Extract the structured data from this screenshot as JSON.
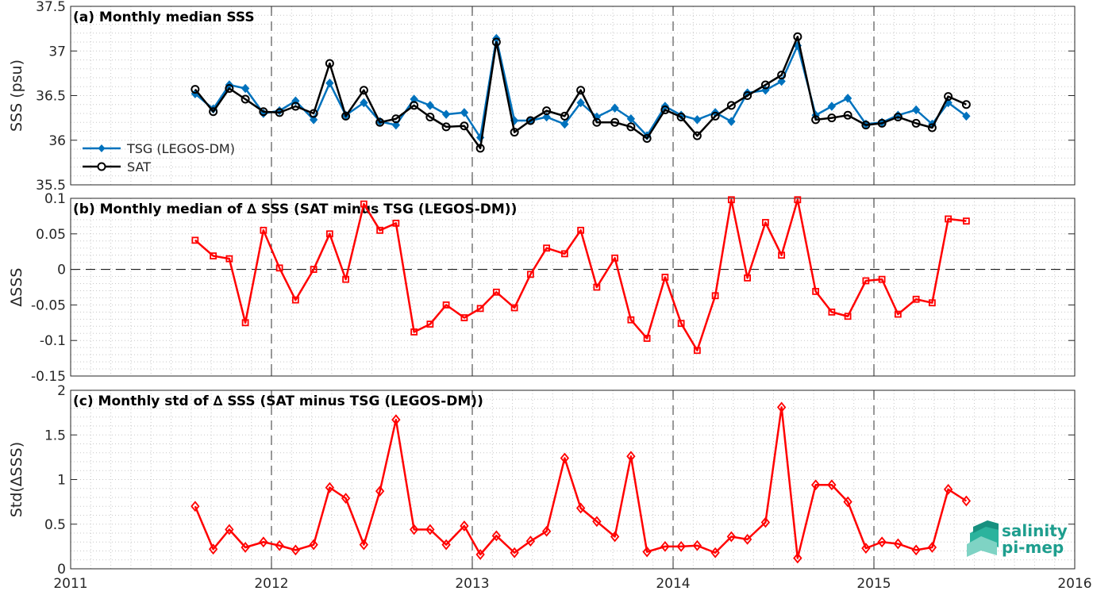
{
  "chart_data": [
    {
      "type": "line",
      "title": "(a) Monthly median SSS",
      "xlabel": "",
      "ylabel": "SSS (psu)",
      "xlim": [
        2011,
        2016
      ],
      "ylim": [
        35.5,
        37.5
      ],
      "xticks": [
        "2011",
        "2012",
        "2013",
        "2014",
        "2015",
        "2016"
      ],
      "yticks": [
        "35.5",
        "36",
        "36.5",
        "37",
        "37.5"
      ],
      "grid": "minor dotted, yearly dashed verticals",
      "legend_position": "bottom-left",
      "x": [
        2011.62,
        2011.71,
        2011.79,
        2011.87,
        2011.96,
        2012.04,
        2012.12,
        2012.21,
        2012.29,
        2012.37,
        2012.46,
        2012.54,
        2012.62,
        2012.71,
        2012.79,
        2012.87,
        2012.96,
        2013.04,
        2013.12,
        2013.21,
        2013.29,
        2013.37,
        2013.46,
        2013.54,
        2013.62,
        2013.71,
        2013.79,
        2013.87,
        2013.96,
        2014.04,
        2014.12,
        2014.21,
        2014.29,
        2014.37,
        2014.46,
        2014.54,
        2014.62,
        2014.71,
        2014.79,
        2014.87,
        2014.96,
        2015.04,
        2015.12,
        2015.21,
        2015.29,
        2015.37,
        2015.46
      ],
      "series": [
        {
          "name": "TSG (LEGOS-DM)",
          "color": "#0072bd",
          "marker": "diamond-filled",
          "values": [
            36.52,
            36.35,
            36.62,
            36.58,
            36.3,
            36.33,
            36.44,
            36.23,
            36.64,
            36.28,
            36.42,
            36.21,
            36.17,
            36.46,
            36.39,
            36.29,
            36.31,
            36.03,
            37.14,
            36.22,
            36.22,
            36.26,
            36.18,
            36.42,
            36.26,
            36.36,
            36.24,
            36.05,
            36.38,
            36.28,
            36.23,
            36.31,
            36.21,
            36.53,
            36.56,
            36.66,
            37.06,
            36.28,
            36.38,
            36.47,
            36.18,
            36.2,
            36.28,
            36.34,
            36.18,
            36.42,
            36.27
          ]
        },
        {
          "name": "SAT",
          "color": "#000000",
          "marker": "circle-open",
          "values": [
            36.57,
            36.32,
            36.58,
            36.46,
            36.32,
            36.31,
            36.38,
            36.3,
            36.86,
            36.27,
            36.56,
            36.2,
            36.24,
            36.39,
            36.26,
            36.15,
            36.16,
            35.91,
            37.1,
            36.09,
            36.22,
            36.33,
            36.27,
            36.56,
            36.2,
            36.2,
            36.15,
            36.02,
            36.34,
            36.26,
            36.05,
            36.27,
            36.39,
            36.5,
            36.62,
            36.73,
            37.16,
            36.23,
            36.25,
            36.28,
            36.17,
            36.19,
            36.26,
            36.19,
            36.14,
            36.49,
            36.4
          ]
        }
      ]
    },
    {
      "type": "line",
      "title": "(b) Monthly median of ∆ SSS (SAT minus TSG (LEGOS-DM))",
      "xlabel": "",
      "ylabel": "∆SSS",
      "xlim": [
        2011,
        2016
      ],
      "ylim": [
        -0.15,
        0.1
      ],
      "xticks": [],
      "yticks": [
        "-0.15",
        "-0.1",
        "-0.05",
        "0",
        "0.05",
        "0.1"
      ],
      "zero_line": "dashed",
      "x": [
        2011.62,
        2011.71,
        2011.79,
        2011.87,
        2011.96,
        2012.04,
        2012.12,
        2012.21,
        2012.29,
        2012.37,
        2012.46,
        2012.54,
        2012.62,
        2012.71,
        2012.79,
        2012.87,
        2012.96,
        2013.04,
        2013.12,
        2013.21,
        2013.29,
        2013.37,
        2013.46,
        2013.54,
        2013.62,
        2013.71,
        2013.79,
        2013.87,
        2013.96,
        2014.04,
        2014.12,
        2014.21,
        2014.29,
        2014.37,
        2014.46,
        2014.54,
        2014.62,
        2014.71,
        2014.79,
        2014.87,
        2014.96,
        2015.04,
        2015.12,
        2015.21,
        2015.29,
        2015.37,
        2015.46
      ],
      "series": [
        {
          "color": "#ff0000",
          "marker": "square-open",
          "values": [
            0.041,
            0.019,
            0.015,
            -0.075,
            0.055,
            0.002,
            -0.043,
            0.0,
            0.05,
            -0.014,
            0.092,
            0.055,
            0.065,
            -0.088,
            -0.077,
            -0.05,
            -0.068,
            -0.055,
            -0.032,
            -0.054,
            -0.007,
            0.03,
            0.022,
            0.055,
            -0.025,
            0.016,
            -0.071,
            -0.097,
            -0.011,
            -0.076,
            -0.114,
            -0.037,
            0.098,
            -0.012,
            0.066,
            0.02,
            0.098,
            -0.031,
            -0.06,
            -0.066,
            -0.016,
            -0.014,
            -0.063,
            -0.042,
            -0.047,
            0.071,
            0.068
          ]
        }
      ]
    },
    {
      "type": "line",
      "title": "(c) Monthly std of ∆ SSS (SAT minus TSG (LEGOS-DM))",
      "xlabel": "",
      "ylabel": "Std(∆SSS)",
      "xlim": [
        2011,
        2016
      ],
      "ylim": [
        0,
        2
      ],
      "xticks": [
        "2011",
        "2012",
        "2013",
        "2014",
        "2015",
        "2016"
      ],
      "yticks": [
        "0",
        "0.5",
        "1",
        "1.5",
        "2"
      ],
      "x": [
        2011.62,
        2011.71,
        2011.79,
        2011.87,
        2011.96,
        2012.04,
        2012.12,
        2012.21,
        2012.29,
        2012.37,
        2012.46,
        2012.54,
        2012.62,
        2012.71,
        2012.79,
        2012.87,
        2012.96,
        2013.04,
        2013.12,
        2013.21,
        2013.29,
        2013.37,
        2013.46,
        2013.54,
        2013.62,
        2013.71,
        2013.79,
        2013.87,
        2013.96,
        2014.04,
        2014.12,
        2014.21,
        2014.29,
        2014.37,
        2014.46,
        2014.54,
        2014.62,
        2014.71,
        2014.79,
        2014.87,
        2014.96,
        2015.04,
        2015.12,
        2015.21,
        2015.29,
        2015.37,
        2015.46
      ],
      "series": [
        {
          "color": "#ff0000",
          "marker": "diamond-open",
          "values": [
            0.7,
            0.22,
            0.44,
            0.24,
            0.3,
            0.26,
            0.21,
            0.27,
            0.91,
            0.79,
            0.27,
            0.87,
            1.67,
            0.44,
            0.44,
            0.27,
            0.48,
            0.16,
            0.37,
            0.18,
            0.31,
            0.42,
            1.24,
            0.68,
            0.53,
            0.36,
            1.26,
            0.19,
            0.25,
            0.25,
            0.26,
            0.18,
            0.36,
            0.33,
            0.52,
            1.81,
            0.12,
            0.94,
            0.94,
            0.75,
            0.23,
            0.3,
            0.28,
            0.21,
            0.24,
            0.89,
            0.76
          ]
        }
      ]
    }
  ],
  "logo": {
    "line1": "salinity",
    "line2": "pi-mep"
  }
}
